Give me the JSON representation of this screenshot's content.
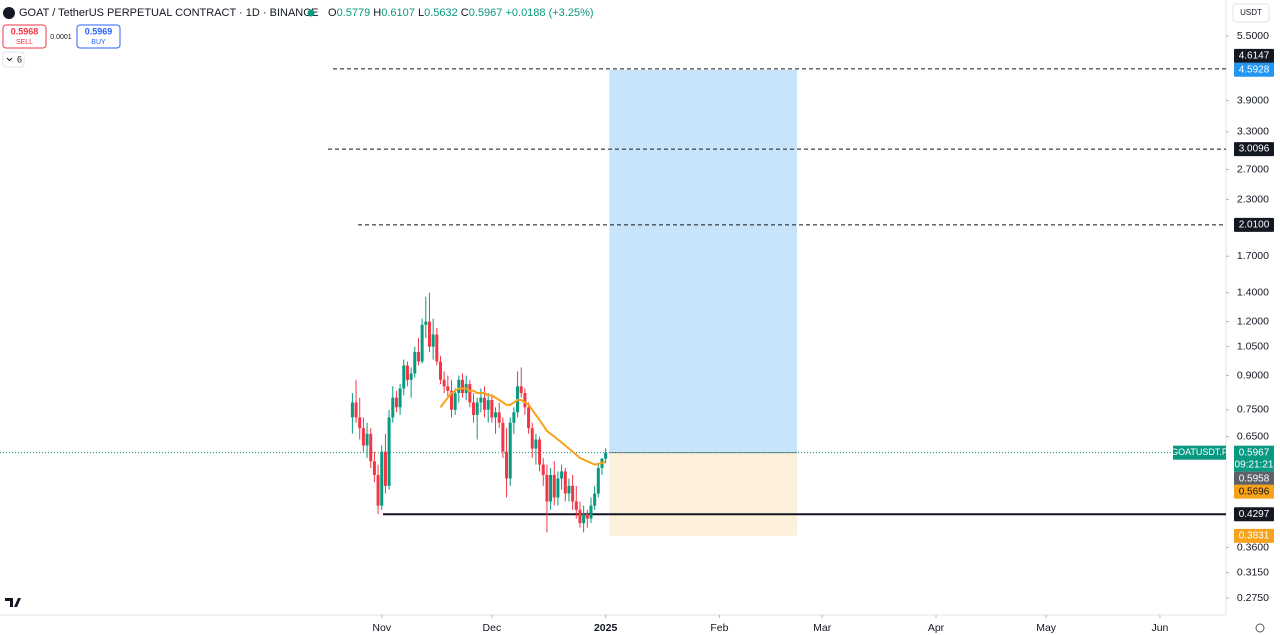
{
  "header": {
    "symbol": "GOAT / TetherUS PERPETUAL CONTRACT · 1D · BINANCE",
    "ohlc_labels": [
      "O",
      "H",
      "L",
      "C"
    ],
    "change": "+0.0188 (+3.25%)"
  },
  "trade": {
    "sell_price": "0.5968",
    "sell": "SELL",
    "spread": "0.0001",
    "buy_price": "0.5969",
    "buy": "BUY",
    "indicators_count": "6"
  },
  "currency": "USDT",
  "chart_data": {
    "type": "candlestick",
    "log_scale": true,
    "ylim": [
      0.2512,
      6.663
    ],
    "yticks": [
      {
        "value": 5.5,
        "label": "5.5000"
      },
      {
        "value": 3.9,
        "label": "3.9000"
      },
      {
        "value": 3.3,
        "label": "3.3000"
      },
      {
        "value": 2.7,
        "label": "2.7000"
      },
      {
        "value": 2.3,
        "label": "2.3000"
      },
      {
        "value": 1.7,
        "label": "1.7000"
      },
      {
        "value": 1.4,
        "label": "1.4000"
      },
      {
        "value": 1.2,
        "label": "1.2000"
      },
      {
        "value": 1.05,
        "label": "1.0500"
      },
      {
        "value": 0.9,
        "label": "0.9000"
      },
      {
        "value": 0.75,
        "label": "0.7500"
      },
      {
        "value": 0.65,
        "label": "0.6500"
      },
      {
        "value": 0.36,
        "label": "0.3600"
      },
      {
        "value": 0.315,
        "label": "0.3150"
      },
      {
        "value": 0.275,
        "label": "0.2750"
      }
    ],
    "xlim": [
      -96,
      238
    ],
    "xticks": [
      {
        "value": 8,
        "label": "Nov"
      },
      {
        "value": 38,
        "label": "Dec"
      },
      {
        "value": 69,
        "label": "2025"
      },
      {
        "value": 100,
        "label": "Feb"
      },
      {
        "value": 128,
        "label": "Mar"
      },
      {
        "value": 159,
        "label": "Apr"
      },
      {
        "value": 189,
        "label": "May"
      },
      {
        "value": 220,
        "label": "Jun"
      }
    ],
    "up_color": "#089981",
    "down_color": "#f23645",
    "candles": {
      "open": [
        0.72,
        0.78,
        0.72,
        0.68,
        0.62,
        0.66,
        0.57,
        0.53,
        0.45,
        0.6,
        0.5,
        0.72,
        0.8,
        0.76,
        0.84,
        0.95,
        0.88,
        0.91,
        1.02,
        0.97,
        1.18,
        1.2,
        1.05,
        1.12,
        0.97,
        0.88,
        0.85,
        0.83,
        0.75,
        0.82,
        0.88,
        0.82,
        0.86,
        0.78,
        0.73,
        0.78,
        0.8,
        0.75,
        0.79,
        0.72,
        0.74,
        0.7,
        0.6,
        0.52,
        0.7,
        0.74,
        0.85,
        0.82,
        0.76,
        0.68,
        0.61,
        0.64,
        0.56,
        0.53,
        0.46,
        0.53,
        0.47,
        0.52,
        0.54,
        0.48,
        0.5,
        0.46,
        0.44,
        0.41,
        0.43,
        0.42,
        0.45,
        0.48,
        0.55,
        0.5779
      ],
      "high": [
        0.82,
        0.88,
        0.8,
        0.72,
        0.7,
        0.68,
        0.6,
        0.56,
        0.62,
        0.66,
        0.75,
        0.85,
        0.83,
        0.86,
        0.98,
        0.97,
        0.94,
        1.05,
        1.1,
        1.22,
        1.37,
        1.4,
        1.22,
        1.16,
        1.0,
        0.92,
        0.9,
        0.88,
        0.84,
        0.9,
        0.91,
        0.9,
        0.88,
        0.82,
        0.8,
        0.84,
        0.85,
        0.82,
        0.81,
        0.76,
        0.78,
        0.72,
        0.68,
        0.72,
        0.76,
        0.92,
        0.94,
        0.84,
        0.78,
        0.7,
        0.66,
        0.65,
        0.58,
        0.56,
        0.55,
        0.57,
        0.54,
        0.56,
        0.55,
        0.52,
        0.53,
        0.5,
        0.46,
        0.45,
        0.44,
        0.47,
        0.5,
        0.56,
        0.58,
        0.6107
      ],
      "low": [
        0.66,
        0.7,
        0.64,
        0.6,
        0.58,
        0.55,
        0.51,
        0.43,
        0.44,
        0.48,
        0.49,
        0.7,
        0.74,
        0.73,
        0.81,
        0.85,
        0.8,
        0.89,
        0.95,
        0.96,
        1.1,
        1.02,
        0.98,
        0.95,
        0.86,
        0.82,
        0.8,
        0.72,
        0.73,
        0.78,
        0.8,
        0.79,
        0.76,
        0.7,
        0.64,
        0.74,
        0.72,
        0.7,
        0.7,
        0.66,
        0.68,
        0.58,
        0.47,
        0.5,
        0.66,
        0.72,
        0.8,
        0.73,
        0.66,
        0.58,
        0.56,
        0.54,
        0.5,
        0.39,
        0.44,
        0.45,
        0.45,
        0.49,
        0.46,
        0.46,
        0.44,
        0.42,
        0.4,
        0.39,
        0.4,
        0.41,
        0.44,
        0.47,
        0.53,
        0.5632
      ],
      "close": [
        0.78,
        0.72,
        0.68,
        0.62,
        0.66,
        0.57,
        0.53,
        0.45,
        0.6,
        0.5,
        0.72,
        0.8,
        0.76,
        0.84,
        0.95,
        0.88,
        0.91,
        1.02,
        0.97,
        1.18,
        1.2,
        1.05,
        1.12,
        0.97,
        0.88,
        0.85,
        0.83,
        0.75,
        0.82,
        0.88,
        0.82,
        0.86,
        0.78,
        0.73,
        0.78,
        0.8,
        0.75,
        0.79,
        0.72,
        0.74,
        0.7,
        0.6,
        0.52,
        0.7,
        0.74,
        0.85,
        0.82,
        0.76,
        0.68,
        0.61,
        0.64,
        0.56,
        0.53,
        0.46,
        0.53,
        0.47,
        0.52,
        0.54,
        0.48,
        0.5,
        0.46,
        0.44,
        0.41,
        0.43,
        0.42,
        0.45,
        0.48,
        0.55,
        0.5779,
        0.5967
      ]
    },
    "ma": {
      "color": "#f7a21b",
      "values": [
        null,
        null,
        null,
        null,
        null,
        null,
        null,
        null,
        null,
        null,
        null,
        null,
        null,
        null,
        null,
        null,
        null,
        null,
        null,
        null,
        null,
        null,
        null,
        null,
        0.76,
        0.78,
        0.8,
        0.82,
        0.83,
        0.84,
        0.84,
        0.84,
        0.83,
        0.83,
        0.82,
        0.82,
        0.82,
        0.81,
        0.81,
        0.8,
        0.79,
        0.78,
        0.77,
        0.77,
        0.78,
        0.79,
        0.79,
        0.78,
        0.77,
        0.75,
        0.73,
        0.71,
        0.69,
        0.67,
        0.66,
        0.65,
        0.64,
        0.63,
        0.62,
        0.61,
        0.6,
        0.59,
        0.58,
        0.575,
        0.57,
        0.565,
        0.56,
        0.562,
        0.565,
        0.5696
      ]
    },
    "levels": [
      {
        "value": 4.6147,
        "style": "dashed"
      },
      {
        "value": 3.0096,
        "style": "dashed"
      },
      {
        "value": 2.01,
        "label": "2.0100",
        "style": "dashed"
      },
      {
        "value": 0.4297,
        "style": "solid"
      }
    ],
    "position": {
      "entry": 0.5967,
      "target": 4.5928,
      "stop": 0.3831,
      "target_color": "#c8e4fa",
      "stop_color": "#fdf0dc",
      "target_badge": "#2196f3",
      "stop_badge": "#f7a21b"
    },
    "last": {
      "value": 0.5967,
      "symbol": "GOATUSDT.P",
      "countdown": "09:21:21",
      "color": "#089981"
    },
    "mark_price": 0.5958
  }
}
